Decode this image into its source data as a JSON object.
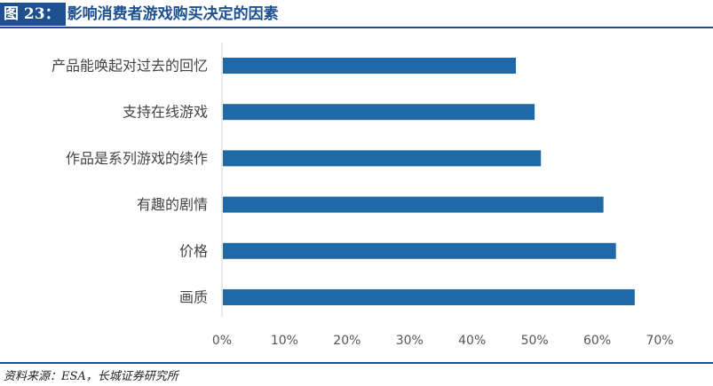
{
  "figure": {
    "label": "图 23：",
    "title": "影响消费者游戏购买决定的因素",
    "source": "资料来源：ESA，长城证券研究所"
  },
  "chart_data": {
    "type": "bar",
    "orientation": "horizontal",
    "categories": [
      "产品能唤起对过去的回忆",
      "支持在线游戏",
      "作品是系列游戏的续作",
      "有趣的剧情",
      "价格",
      "画质"
    ],
    "values": [
      0.47,
      0.5,
      0.51,
      0.61,
      0.63,
      0.66
    ],
    "xlim": [
      0,
      0.7
    ],
    "x_ticks": [
      0,
      0.1,
      0.2,
      0.3,
      0.4,
      0.5,
      0.6,
      0.7
    ],
    "x_tick_labels": [
      "0%",
      "10%",
      "20%",
      "30%",
      "40%",
      "50%",
      "60%",
      "70%"
    ],
    "bar_color": "#1f6aa6",
    "grid": false,
    "legend": "none"
  }
}
